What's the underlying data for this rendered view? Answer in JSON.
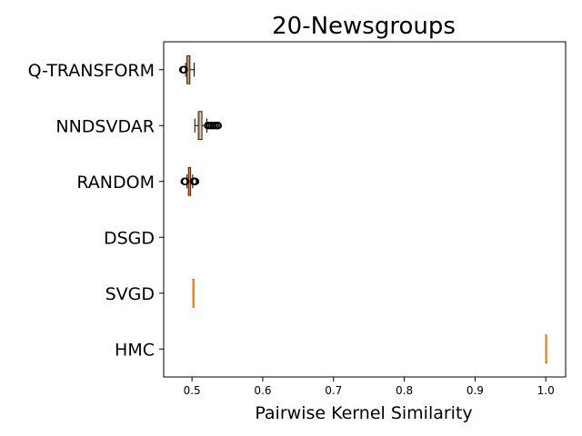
{
  "chart_data": {
    "type": "boxplot",
    "orientation": "horizontal",
    "title": "20-Newsgroups",
    "xlabel": "Pairwise Kernel Similarity",
    "ylabel": "",
    "xlim": [
      0.46,
      1.028
    ],
    "xticks": [
      0.5,
      0.6,
      0.7,
      0.8,
      0.9,
      1.0
    ],
    "xtick_labels": [
      "0.5",
      "0.6",
      "0.7",
      "0.8",
      "0.9",
      "1.0"
    ],
    "grid": false,
    "box_color": "#000000",
    "median_color": "#ff7f0e",
    "categories": [
      "Q-TRANSFORM",
      "NNDSVDAR",
      "RANDOM",
      "DSGD",
      "SVGD",
      "HMC"
    ],
    "series": [
      {
        "whisker_low": 0.491,
        "q1": 0.493,
        "median": 0.495,
        "q3": 0.497,
        "whisker_high": 0.503,
        "outliers": [
          0.487,
          0.488,
          0.489
        ]
      },
      {
        "whisker_low": 0.504,
        "q1": 0.509,
        "median": 0.511,
        "q3": 0.514,
        "whisker_high": 0.521,
        "outliers": [
          0.522,
          0.524,
          0.526,
          0.528,
          0.53,
          0.532,
          0.534,
          0.536,
          0.537
        ]
      },
      {
        "whisker_low": 0.493,
        "q1": 0.495,
        "median": 0.4965,
        "q3": 0.498,
        "whisker_high": 0.501,
        "outliers": [
          0.489,
          0.49,
          0.491,
          0.502,
          0.503,
          0.504,
          0.505
        ]
      },
      {
        "whisker_low": null,
        "q1": null,
        "median": null,
        "q3": null,
        "whisker_high": null,
        "outliers": []
      },
      {
        "whisker_low": 0.5015,
        "q1": 0.5015,
        "median": 0.5015,
        "q3": 0.5015,
        "whisker_high": 0.5015,
        "outliers": []
      },
      {
        "whisker_low": 1.0,
        "q1": 1.0,
        "median": 1.0,
        "q3": 1.0,
        "whisker_high": 1.0,
        "outliers": []
      }
    ]
  }
}
